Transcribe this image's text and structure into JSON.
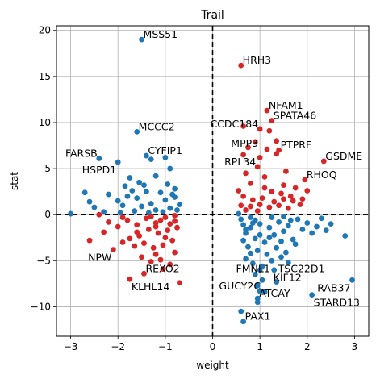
{
  "chart_data": {
    "type": "scatter",
    "title": "Trail",
    "xlabel": "weight",
    "ylabel": "stat",
    "xlim": [
      -3.3,
      3.3
    ],
    "ylim": [
      -13.2,
      20.5
    ],
    "xticks": [
      -3,
      -2,
      -1,
      0,
      1,
      2,
      3
    ],
    "yticks": [
      -10,
      -5,
      0,
      5,
      10,
      15,
      20
    ],
    "grid": true,
    "reference_lines": {
      "x": 0,
      "y": 0,
      "style": "dashed"
    },
    "colors": {
      "negative_weight": "#1f77b4",
      "positive_weight": "#d62728",
      "grid": "#b0b0b0"
    },
    "series": [
      {
        "color": "#1f77b4",
        "points": [
          [
            -1.5,
            19.0
          ],
          [
            -1.6,
            9.0
          ],
          [
            -2.4,
            6.1
          ],
          [
            -1.4,
            6.4
          ],
          [
            -0.9,
            5.0
          ],
          [
            -1.3,
            6.0
          ],
          [
            -1.0,
            6.2
          ],
          [
            -2.0,
            5.7
          ],
          [
            -1.85,
            3.1
          ],
          [
            -1.75,
            4.0
          ],
          [
            -1.55,
            3.5
          ],
          [
            -1.7,
            2.6
          ],
          [
            -1.2,
            4.2
          ],
          [
            -1.45,
            3.2
          ],
          [
            -0.8,
            2.8
          ],
          [
            -0.95,
            3.3
          ],
          [
            -1.1,
            2.4
          ],
          [
            -2.7,
            2.4
          ],
          [
            -2.6,
            1.4
          ],
          [
            -2.5,
            0.8
          ],
          [
            -2.2,
            2.2
          ],
          [
            -2.0,
            1.5
          ],
          [
            -1.9,
            1.0
          ],
          [
            -1.8,
            2.0
          ],
          [
            -1.6,
            1.8
          ],
          [
            -1.5,
            0.9
          ],
          [
            -1.4,
            2.5
          ],
          [
            -1.3,
            1.2
          ],
          [
            -1.2,
            0.5
          ],
          [
            -1.0,
            1.6
          ],
          [
            -0.9,
            0.7
          ],
          [
            -0.8,
            1.9
          ],
          [
            -0.7,
            1.1
          ],
          [
            -0.85,
            2.2
          ],
          [
            -1.65,
            0.4
          ],
          [
            -1.35,
            0.2
          ],
          [
            -1.05,
            0.3
          ],
          [
            -0.75,
            0.5
          ],
          [
            -3.0,
            0.1
          ],
          [
            -2.3,
            0.3
          ],
          [
            -1.95,
            0.2
          ],
          [
            0.8,
            -0.3
          ],
          [
            0.9,
            -0.6
          ],
          [
            1.0,
            -1.0
          ],
          [
            1.2,
            -1.4
          ],
          [
            1.4,
            -0.8
          ],
          [
            1.6,
            -1.2
          ],
          [
            1.8,
            -0.5
          ],
          [
            2.0,
            -0.9
          ],
          [
            2.2,
            -1.3
          ],
          [
            2.5,
            -1.0
          ],
          [
            2.8,
            -2.3
          ],
          [
            0.7,
            -2.0
          ],
          [
            0.9,
            -2.6
          ],
          [
            1.1,
            -3.0
          ],
          [
            1.3,
            -2.2
          ],
          [
            1.5,
            -1.8
          ],
          [
            1.7,
            -2.7
          ],
          [
            2.1,
            -2.0
          ],
          [
            2.4,
            -1.7
          ],
          [
            0.75,
            -3.5
          ],
          [
            0.95,
            -3.9
          ],
          [
            1.15,
            -4.3
          ],
          [
            1.35,
            -3.6
          ],
          [
            1.55,
            -4.1
          ],
          [
            1.75,
            -3.2
          ],
          [
            0.7,
            -4.8
          ],
          [
            0.85,
            -5.3
          ],
          [
            1.05,
            -5.6
          ],
          [
            1.25,
            -5.0
          ],
          [
            1.45,
            -4.6
          ],
          [
            1.0,
            -6.0
          ],
          [
            1.3,
            -6.0
          ],
          [
            0.9,
            -6.5
          ],
          [
            1.05,
            -7.1
          ],
          [
            0.95,
            -7.7
          ],
          [
            1.0,
            -8.3
          ],
          [
            1.1,
            -8.4
          ],
          [
            0.95,
            -9.1
          ],
          [
            0.95,
            -9.5
          ],
          [
            0.6,
            -10.5
          ],
          [
            0.65,
            -11.6
          ],
          [
            2.95,
            -7.1
          ],
          [
            2.1,
            -8.7
          ],
          [
            0.55,
            0.1
          ],
          [
            0.6,
            -0.5
          ],
          [
            0.65,
            -1.1
          ],
          [
            0.7,
            -1.6
          ],
          [
            0.85,
            -0.9
          ],
          [
            1.25,
            -0.3
          ],
          [
            1.5,
            -0.2
          ],
          [
            1.65,
            -0.6
          ],
          [
            1.9,
            -1.6
          ],
          [
            2.3,
            -0.4
          ],
          [
            0.8,
            -1.4
          ],
          [
            1.0,
            -2.2
          ],
          [
            1.2,
            -2.5
          ],
          [
            1.45,
            -2.9
          ],
          [
            0.65,
            -2.8
          ],
          [
            0.8,
            -4.2
          ],
          [
            1.6,
            -5.2
          ],
          [
            1.35,
            -7.3
          ]
        ]
      },
      {
        "color": "#d62728",
        "points": [
          [
            0.6,
            16.2
          ],
          [
            1.15,
            11.3
          ],
          [
            1.25,
            10.2
          ],
          [
            0.65,
            9.6
          ],
          [
            1.2,
            9.1
          ],
          [
            1.0,
            9.3
          ],
          [
            0.9,
            7.9
          ],
          [
            1.15,
            7.1
          ],
          [
            1.4,
            7.0
          ],
          [
            0.65,
            6.5
          ],
          [
            1.35,
            6.6
          ],
          [
            1.0,
            6.2
          ],
          [
            0.95,
            5.2
          ],
          [
            0.7,
            4.5
          ],
          [
            1.55,
            4.7
          ],
          [
            1.95,
            3.8
          ],
          [
            2.35,
            5.8
          ],
          [
            0.8,
            3.4
          ],
          [
            1.1,
            2.9
          ],
          [
            1.25,
            2.5
          ],
          [
            1.45,
            2.3
          ],
          [
            1.65,
            2.0
          ],
          [
            2.0,
            2.6
          ],
          [
            0.65,
            2.0
          ],
          [
            0.85,
            1.6
          ],
          [
            1.05,
            1.8
          ],
          [
            1.3,
            1.4
          ],
          [
            1.5,
            1.7
          ],
          [
            1.7,
            1.5
          ],
          [
            1.9,
            1.7
          ],
          [
            0.6,
            1.0
          ],
          [
            0.8,
            0.9
          ],
          [
            1.0,
            1.1
          ],
          [
            1.2,
            0.8
          ],
          [
            1.4,
            1.0
          ],
          [
            1.6,
            0.7
          ],
          [
            0.7,
            0.5
          ],
          [
            0.95,
            0.4
          ],
          [
            1.85,
            1.1
          ],
          [
            1.75,
            2.9
          ],
          [
            1.1,
            4.1
          ],
          [
            0.75,
            7.3
          ],
          [
            1.35,
            8.0
          ],
          [
            1.5,
            3.2
          ],
          [
            0.55,
            2.6
          ],
          [
            -2.4,
            0.0
          ],
          [
            -2.2,
            -0.8
          ],
          [
            -2.0,
            -1.3
          ],
          [
            -1.8,
            -0.6
          ],
          [
            -1.6,
            -1.1
          ],
          [
            -1.4,
            -0.4
          ],
          [
            -1.2,
            -0.9
          ],
          [
            -1.0,
            -0.3
          ],
          [
            -0.8,
            -0.7
          ],
          [
            -0.75,
            -1.4
          ],
          [
            -0.95,
            -1.7
          ],
          [
            -1.15,
            -2.0
          ],
          [
            -1.35,
            -1.6
          ],
          [
            -1.55,
            -2.3
          ],
          [
            -1.75,
            -2.6
          ],
          [
            -2.3,
            -1.9
          ],
          [
            -2.6,
            -2.8
          ],
          [
            -2.1,
            -3.8
          ],
          [
            -1.9,
            -3.0
          ],
          [
            -1.65,
            -3.4
          ],
          [
            -1.45,
            -3.1
          ],
          [
            -1.25,
            -3.6
          ],
          [
            -1.05,
            -3.3
          ],
          [
            -0.85,
            -2.8
          ],
          [
            -1.2,
            -4.3
          ],
          [
            -1.5,
            -4.6
          ],
          [
            -1.3,
            -5.1
          ],
          [
            -1.1,
            -4.9
          ],
          [
            -0.9,
            -5.4
          ],
          [
            -1.05,
            -5.9
          ],
          [
            -0.8,
            -4.1
          ],
          [
            -1.45,
            -6.4
          ],
          [
            -1.75,
            -7.0
          ],
          [
            -0.7,
            -7.4
          ],
          [
            -1.6,
            -1.9
          ],
          [
            -1.0,
            -2.5
          ],
          [
            -0.8,
            -0.1
          ],
          [
            -1.3,
            -0.2
          ],
          [
            -1.9,
            -0.3
          ],
          [
            -1.2,
            -1.3
          ],
          [
            -0.9,
            -1.0
          ],
          [
            -1.1,
            -0.6
          ]
        ]
      }
    ],
    "annotations": [
      {
        "text": "MSS51",
        "x": -1.5,
        "y": 19.0
      },
      {
        "text": "HRH3",
        "x": 0.6,
        "y": 16.2
      },
      {
        "text": "NFAM1",
        "x": 1.15,
        "y": 11.3
      },
      {
        "text": "SPATA46",
        "x": 1.25,
        "y": 10.2
      },
      {
        "text": "CCDC184",
        "x": 1.0,
        "y": 9.3,
        "anchor": "end"
      },
      {
        "text": "MCCC2",
        "x": -1.6,
        "y": 9.0
      },
      {
        "text": "MPP3",
        "x": 1.0,
        "y": 7.2,
        "anchor": "end"
      },
      {
        "text": "PTPRE",
        "x": 1.4,
        "y": 7.0
      },
      {
        "text": "GSDME",
        "x": 2.35,
        "y": 5.8
      },
      {
        "text": "FARSB",
        "x": -2.4,
        "y": 6.1,
        "anchor": "end"
      },
      {
        "text": "CYFIP1",
        "x": -1.4,
        "y": 6.4
      },
      {
        "text": "RPL34",
        "x": 0.95,
        "y": 5.2,
        "anchor": "end"
      },
      {
        "text": "HSPD1",
        "x": -2.0,
        "y": 5.7,
        "anchor": "end",
        "below": true
      },
      {
        "text": "RHOQ",
        "x": 1.95,
        "y": 3.8
      },
      {
        "text": "NPW",
        "x": -2.1,
        "y": -3.8,
        "anchor": "end",
        "below": true
      },
      {
        "text": "FMNL1",
        "x": 1.25,
        "y": -5.0,
        "anchor": "end",
        "below": true
      },
      {
        "text": "TSC22D1",
        "x": 1.35,
        "y": -5.0,
        "below": true
      },
      {
        "text": "REXO2",
        "x": -1.45,
        "y": -6.4
      },
      {
        "text": "KIF12",
        "x": 1.25,
        "y": -6.0,
        "below": true
      },
      {
        "text": "KLHL14",
        "x": -1.75,
        "y": -7.0,
        "below": true
      },
      {
        "text": "RAB37",
        "x": 2.95,
        "y": -7.1,
        "anchor": "end",
        "below": true
      },
      {
        "text": "GUCY2C",
        "x": 1.05,
        "y": -8.3,
        "anchor": "end"
      },
      {
        "text": "ATCAY",
        "x": 0.95,
        "y": -9.1
      },
      {
        "text": "STARD13",
        "x": 2.1,
        "y": -8.7,
        "below": true
      },
      {
        "text": "PAX1",
        "x": 0.65,
        "y": -11.6
      }
    ]
  }
}
